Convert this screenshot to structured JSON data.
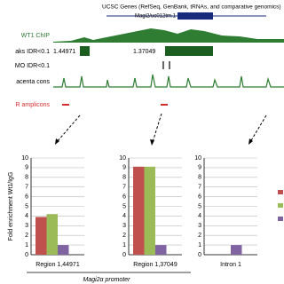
{
  "browser": {
    "genes_track": "UCSC Genes (RefSeq, GenBank, tRNAs, and comparative genomics)",
    "gene_name": "Magi2/uc012tm.1",
    "chip_track": "WT1 ChIP",
    "peaks_track": "aks IDR<0.1",
    "peak_labels": [
      "1.44971",
      "1.37049"
    ],
    "mo_track": "MO IDR<0.1",
    "cons_track": "acenta cons",
    "amplicons_track": "R amplicons"
  },
  "chart_data": [
    {
      "type": "bar",
      "ylabel": "Fold enrichment Wt1/IgG",
      "categories": [
        "Region 1,44971"
      ],
      "series": [
        {
          "color": "#c0504d",
          "values": [
            3.9
          ]
        },
        {
          "color": "#9bbb59",
          "values": [
            4.2
          ]
        },
        {
          "color": "#8064a2",
          "values": [
            1.0
          ]
        }
      ],
      "ylim": [
        0,
        10
      ],
      "yticks": [
        0,
        1,
        2,
        3,
        4,
        5,
        6,
        7,
        8,
        9,
        10
      ],
      "grid": true
    },
    {
      "type": "bar",
      "categories": [
        "Region 1,37049"
      ],
      "series": [
        {
          "color": "#c0504d",
          "values": [
            9.1
          ]
        },
        {
          "color": "#9bbb59",
          "values": [
            9.1
          ]
        },
        {
          "color": "#8064a2",
          "values": [
            1.0
          ]
        }
      ],
      "ylim": [
        0,
        10
      ],
      "yticks": [
        0,
        1,
        2,
        3,
        4,
        5,
        6,
        7,
        8,
        9,
        10
      ],
      "grid": true
    },
    {
      "type": "bar",
      "categories": [
        "Intron 1"
      ],
      "series": [
        {
          "color": "#c0504d",
          "values": [
            null
          ]
        },
        {
          "color": "#9bbb59",
          "values": [
            null
          ]
        },
        {
          "color": "#8064a2",
          "values": [
            1.0
          ]
        }
      ],
      "ylim": [
        0,
        10
      ],
      "yticks": [
        0,
        1,
        2,
        3,
        4,
        5,
        6,
        7,
        8,
        9,
        10
      ],
      "grid": true
    }
  ],
  "promoter_label": "Magi2α promoter"
}
